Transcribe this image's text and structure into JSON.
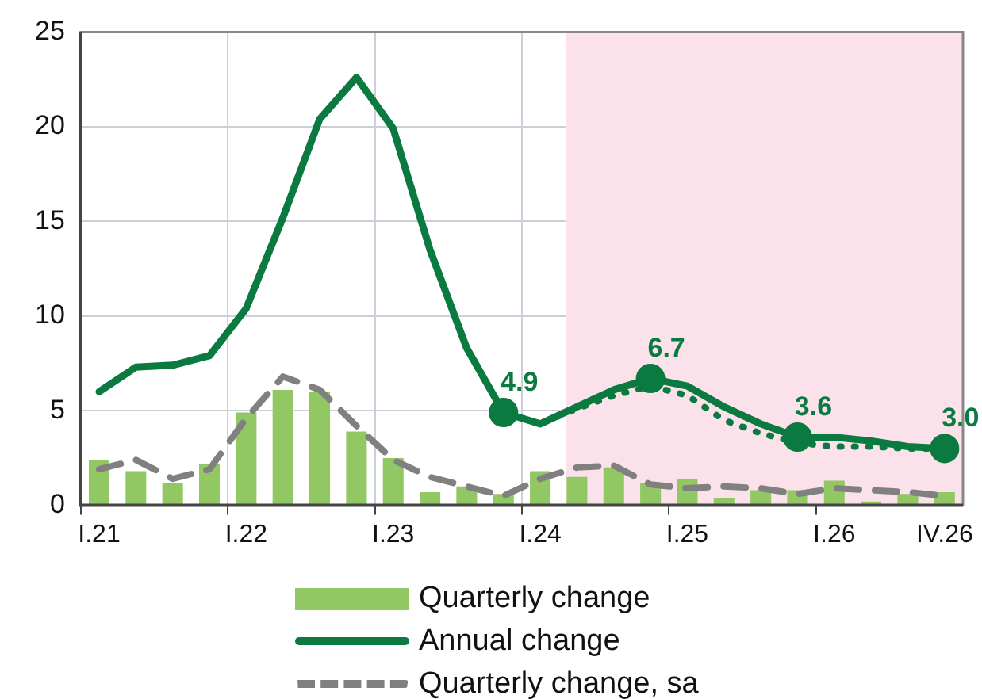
{
  "chart_data": {
    "type": "bar",
    "categories": [
      "I.21",
      null,
      null,
      null,
      "I.22",
      null,
      null,
      null,
      "I.23",
      null,
      null,
      null,
      "I.24",
      null,
      null,
      null,
      "I.25",
      null,
      null,
      null,
      "I.26",
      null,
      null,
      "IV.26"
    ],
    "series": [
      {
        "name": "Quarterly change",
        "color": "#92c864",
        "values": [
          2.4,
          1.8,
          1.2,
          2.2,
          4.9,
          6.1,
          6.0,
          3.9,
          2.5,
          0.7,
          1.0,
          0.6,
          1.8,
          1.5,
          2.0,
          1.2,
          1.4,
          0.4,
          0.8,
          0.8,
          1.3,
          0.2,
          0.6,
          0.7
        ]
      },
      {
        "name": "Annual change",
        "type": "line",
        "color": "#0a7a40",
        "line_style": "solid",
        "values": [
          6.0,
          7.3,
          7.4,
          7.9,
          10.4,
          15.2,
          20.4,
          22.6,
          19.9,
          13.5,
          8.3,
          4.9,
          4.3,
          5.2,
          6.1,
          6.7,
          6.3,
          5.2,
          4.3,
          3.6,
          3.6,
          3.4,
          3.1,
          3.0
        ],
        "value_labels": [
          null,
          null,
          null,
          null,
          null,
          null,
          null,
          null,
          null,
          null,
          null,
          "4.9",
          null,
          null,
          null,
          "6.7",
          null,
          null,
          null,
          "3.6",
          null,
          null,
          null,
          "3.0"
        ]
      },
      {
        "name": "Quarterly change, sa",
        "type": "line",
        "color": "#808080",
        "line_style": "dashed",
        "values": [
          1.9,
          2.4,
          1.4,
          1.9,
          4.6,
          6.8,
          6.1,
          4.2,
          2.4,
          1.5,
          1.0,
          0.5,
          1.4,
          2.0,
          2.1,
          1.1,
          0.9,
          1.0,
          0.9,
          0.6,
          0.9,
          0.8,
          0.7,
          0.5
        ]
      },
      {
        "type": "line",
        "color": "#0a7a40",
        "line_style": "dotted",
        "values": [
          null,
          null,
          null,
          null,
          null,
          null,
          null,
          null,
          null,
          null,
          null,
          4.9,
          4.3,
          5.1,
          5.8,
          6.3,
          5.8,
          4.5,
          3.8,
          3.3,
          3.1,
          3.1,
          3.0,
          3.0
        ]
      }
    ],
    "ylim": [
      0,
      25
    ],
    "yticks": [
      0,
      5,
      10,
      15,
      20,
      25
    ],
    "grid": true,
    "legend": "bottom"
  }
}
